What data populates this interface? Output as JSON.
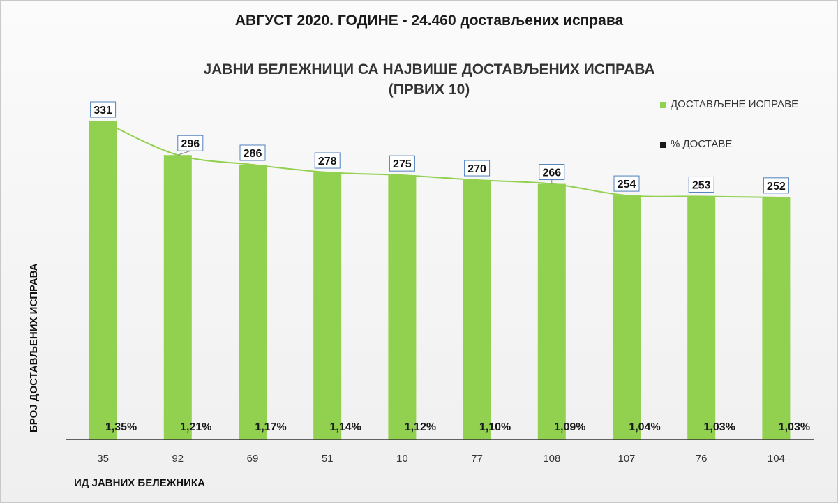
{
  "headline": "АВГУСТ 2020. ГОДИНЕ - 24.460 достављених исправа",
  "title_line1": "ЈАВНИ БЕЛЕЖНИЦИ СА НАЈВИШЕ ДОСТАВЉЕНИХ ИСПРАВА",
  "title_line2": "(ПРВИХ 10)",
  "legend": {
    "series1": "ДОСТАВЉЕНЕ ИСПРАВЕ",
    "series2": "% ДОСТАВЕ",
    "series1_color": "#92d050",
    "series2_color": "#1a1a1a"
  },
  "chart_data": {
    "type": "bar",
    "xlabel": "ИД ЈАВНИХ БЕЛЕЖНИКА",
    "ylabel": "БРОЈ ДОСТАВЉЕНИХ ИСПРАВА",
    "categories": [
      "35",
      "92",
      "69",
      "51",
      "10",
      "77",
      "108",
      "107",
      "76",
      "104"
    ],
    "series": [
      {
        "name": "ДОСТАВЉЕНЕ ИСПРАВЕ",
        "values": [
          331,
          296,
          286,
          278,
          275,
          270,
          266,
          254,
          253,
          252
        ],
        "labels": [
          "331",
          "296",
          "286",
          "278",
          "275",
          "270",
          "266",
          "254",
          "253",
          "252"
        ],
        "color": "#92d050"
      },
      {
        "name": "% ДОСТАВЕ",
        "values": [
          1.35,
          1.21,
          1.17,
          1.14,
          1.12,
          1.1,
          1.09,
          1.04,
          1.03,
          1.03
        ],
        "labels": [
          "1,35%",
          "1,21%",
          "1,17%",
          "1,14%",
          "1,12%",
          "1,10%",
          "1,09%",
          "1,04%",
          "1,03%",
          "1,03%"
        ],
        "color": "#1a1a1a"
      }
    ],
    "trendline": true,
    "ylim": [
      0,
      331
    ],
    "grid": false,
    "legend_position": "top-right"
  }
}
